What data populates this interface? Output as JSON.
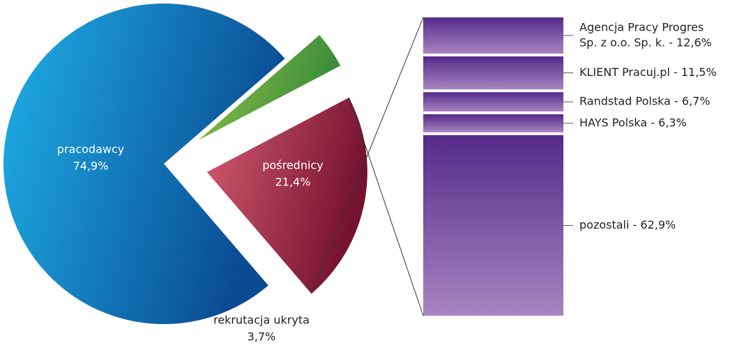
{
  "chart_data": [
    {
      "type": "pie",
      "categories": [
        "pracodawcy",
        "pośrednicy",
        "rekrutacja ukryta"
      ],
      "values": [
        74.9,
        21.4,
        3.7
      ],
      "value_labels": [
        "74,9%",
        "21,4%",
        "3,7%"
      ],
      "colors": [
        [
          "#1fb0e8",
          "#0a4b92"
        ],
        [
          "#d65c72",
          "#741230"
        ],
        [
          "#93c64a",
          "#3a8a3a"
        ]
      ]
    },
    {
      "type": "stacked-bar",
      "values": [
        12.6,
        11.5,
        6.7,
        6.3,
        62.9
      ],
      "value_labels": [
        [
          "Agencja Pracy Progres",
          "Sp. z o.o. Sp. k. - 12,6%"
        ],
        [
          "KLIENT Pracuj.pl - 11,5%"
        ],
        [
          "Randstad Polska - 6,7%"
        ],
        [
          "HAYS Polska - 6,3%"
        ],
        [
          "pozostali - 62,9%"
        ]
      ],
      "colors": [
        "#552a8a",
        "#a884c0"
      ]
    }
  ]
}
